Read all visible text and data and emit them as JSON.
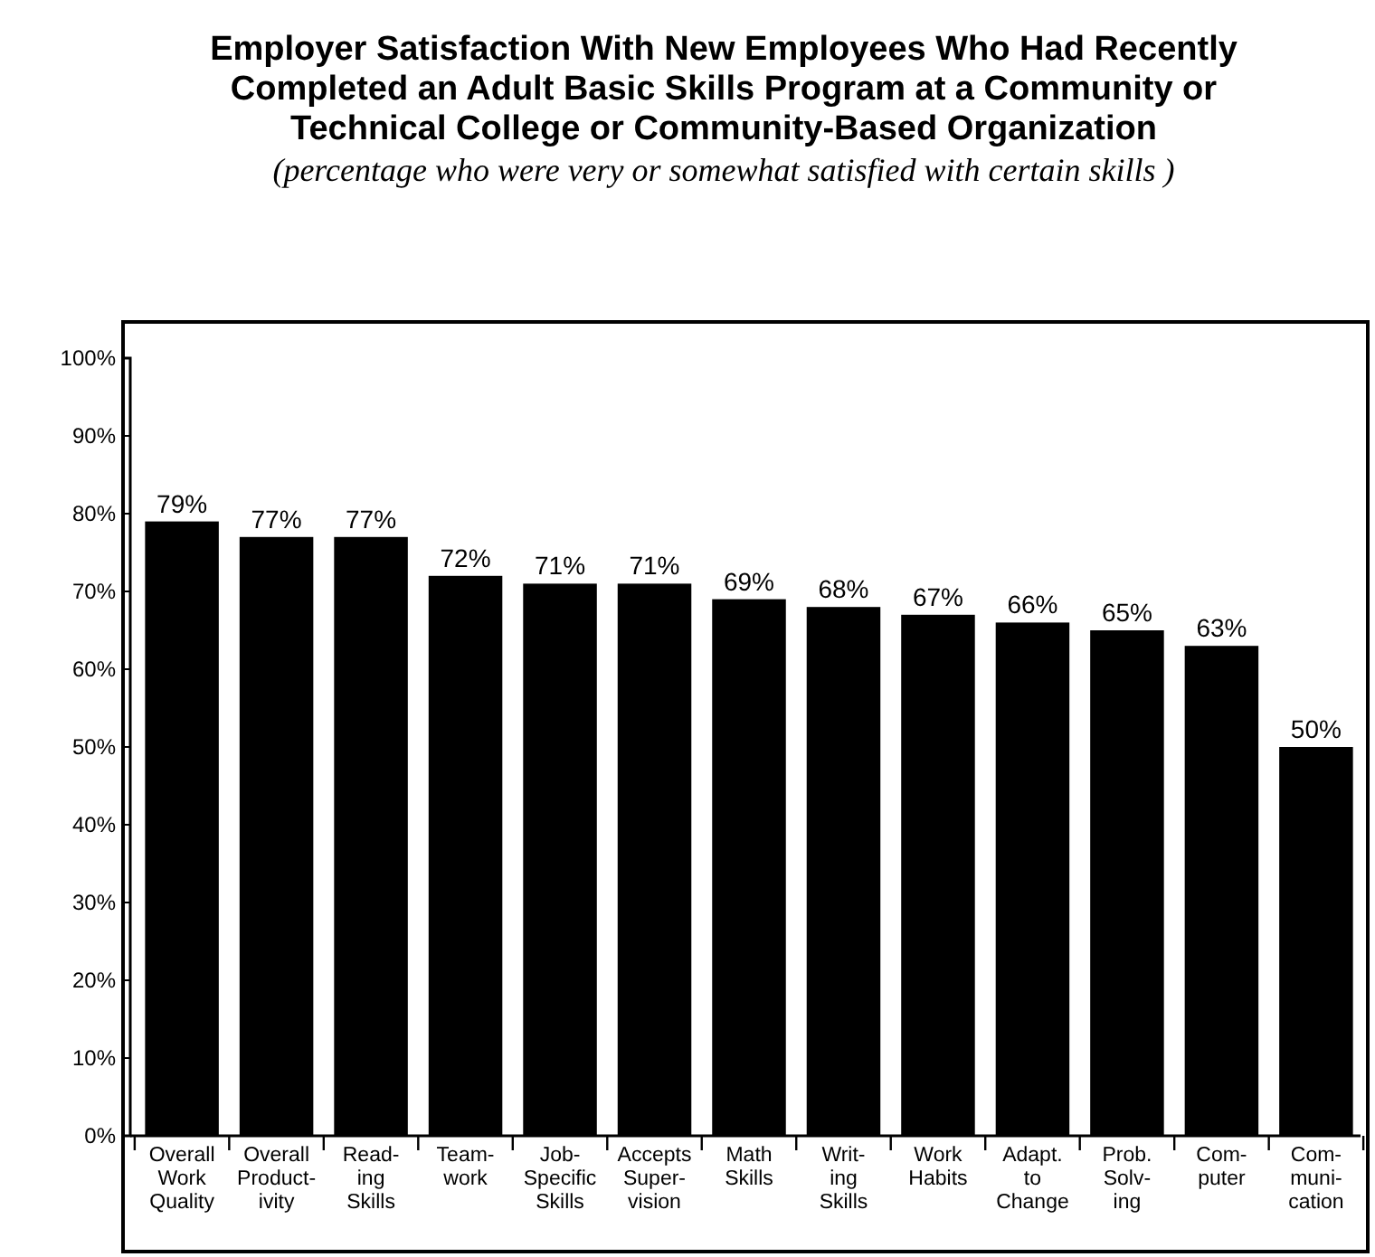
{
  "chart_data": {
    "type": "bar",
    "title": "Employer Satisfaction With New Employees Who Had Recently\nCompleted an Adult Basic Skills Program  at a Community or\nTechnical College or Community-Based Organization",
    "subtitle": "(percentage who were very or somewhat satisfied with certain skills )",
    "categories": [
      "Overall\nWork\nQuality",
      "Overall\nProduct-\nivity",
      "Read-\ning\nSkills",
      "Team-\nwork",
      "Job-\nSpecific\nSkills",
      "Accepts\nSuper-\nvision",
      "Math\nSkills",
      "Writ-\ning\nSkills",
      "Work\nHabits",
      "Adapt.\nto\nChange",
      "Prob.\nSolv-\ning",
      "Com-\nputer",
      "Com-\nmuni-\ncation"
    ],
    "values": [
      79,
      77,
      77,
      72,
      71,
      71,
      69,
      68,
      67,
      66,
      65,
      63,
      50
    ],
    "value_labels": [
      "79%",
      "77%",
      "77%",
      "72%",
      "71%",
      "71%",
      "69%",
      "68%",
      "67%",
      "66%",
      "65%",
      "63%",
      "50%"
    ],
    "color": "#000000",
    "ylim": [
      0,
      100
    ],
    "yticks": [
      {
        "value": 0,
        "label": "0%"
      },
      {
        "value": 10,
        "label": "10%"
      },
      {
        "value": 20,
        "label": "20%"
      },
      {
        "value": 30,
        "label": "30%"
      },
      {
        "value": 40,
        "label": "40%"
      },
      {
        "value": 50,
        "label": "50%"
      },
      {
        "value": 60,
        "label": "60%"
      },
      {
        "value": 70,
        "label": "70%"
      },
      {
        "value": 80,
        "label": "80%"
      },
      {
        "value": 90,
        "label": "90%"
      },
      {
        "value": 100,
        "label": "100%"
      }
    ],
    "grid": false
  }
}
